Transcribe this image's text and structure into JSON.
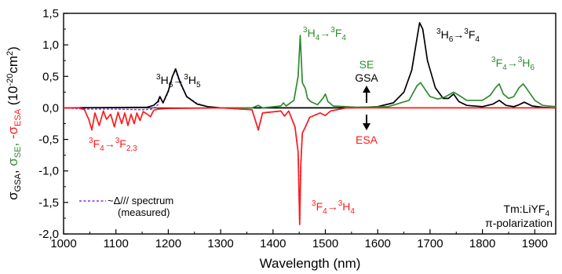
{
  "chart_data": {
    "type": "line",
    "title": "",
    "xlabel": "Wavelength (nm)",
    "ylabel": {
      "gsa": "σGSA, ",
      "se": "σSE",
      "sep": ", ",
      "esa": "-σESA",
      "units": " (10-20cm2)"
    },
    "xlim": [
      1000,
      1940
    ],
    "ylim": [
      -2.0,
      1.5
    ],
    "x_ticks": [
      1000,
      1100,
      1200,
      1300,
      1400,
      1500,
      1600,
      1700,
      1800,
      1900
    ],
    "y_ticks": [
      -2.0,
      -1.5,
      -1.0,
      -0.5,
      0.0,
      0.5,
      1.0,
      1.5
    ],
    "x_tick_labels": [
      "1000",
      "1100",
      "1200",
      "1300",
      "1400",
      "1500",
      "1600",
      "1700",
      "1800",
      "1900"
    ],
    "y_tick_labels": [
      "-2,0",
      "-1,5",
      "-1,0",
      "-0,5",
      "0,0",
      "0,5",
      "1,0",
      "1,5"
    ],
    "grid": false,
    "legend_position": "bottom-left",
    "colors": {
      "gsa": "#000000",
      "se": "#2e8b2e",
      "esa": "#ff1a1a",
      "spectrum": "#8a2be2"
    },
    "series": [
      {
        "name": "~Δ/// spectrum (measured)",
        "color": "#8a2be2",
        "dashed": true,
        "x": [
          1000,
          1050,
          1100,
          1150,
          1170,
          1180,
          1184,
          1190,
          1200,
          1208,
          1214,
          1222,
          1235,
          1255,
          1275,
          1300,
          1360,
          1372,
          1380,
          1415,
          1422,
          1430,
          1442,
          1448,
          1451,
          1453,
          1456,
          1462,
          1470,
          1490,
          1500,
          1510,
          1540
        ],
        "y": [
          0,
          -0.02,
          -0.02,
          -0.03,
          -0.02,
          0.05,
          0.17,
          0.08,
          0.25,
          0.5,
          0.6,
          0.4,
          0.18,
          0.07,
          0.02,
          0,
          -0.03,
          -0.35,
          -0.08,
          -0.05,
          -0.13,
          -0.05,
          -0.3,
          -0.7,
          -1.85,
          -0.9,
          -0.4,
          -0.3,
          -0.15,
          -0.08,
          -0.12,
          -0.05,
          0
        ]
      },
      {
        "name": "GSA",
        "color": "#000000",
        "dashed": false,
        "x": [
          1000,
          1160,
          1172,
          1180,
          1184,
          1190,
          1200,
          1208,
          1214,
          1222,
          1235,
          1255,
          1275,
          1300,
          1550,
          1600,
          1630,
          1650,
          1665,
          1675,
          1680,
          1686,
          1695,
          1710,
          1725,
          1735,
          1745,
          1755,
          1770,
          1800,
          1820,
          1832,
          1845,
          1860,
          1870,
          1880,
          1895,
          1915,
          1940
        ],
        "y": [
          0,
          0.01,
          0.04,
          0.1,
          0.18,
          0.08,
          0.27,
          0.5,
          0.62,
          0.42,
          0.18,
          0.06,
          0.02,
          0,
          0,
          0.02,
          0.08,
          0.25,
          0.6,
          1.1,
          1.35,
          1.25,
          0.75,
          0.32,
          0.15,
          0.15,
          0.22,
          0.1,
          0.04,
          0.02,
          0.06,
          0.12,
          0.04,
          0.02,
          0.05,
          0.09,
          0.03,
          0.01,
          0
        ]
      },
      {
        "name": "SE",
        "color": "#2e8b2e",
        "dashed": false,
        "x": [
          1300,
          1360,
          1372,
          1380,
          1415,
          1420,
          1425,
          1440,
          1448,
          1452,
          1456,
          1462,
          1466,
          1472,
          1485,
          1495,
          1500,
          1505,
          1515,
          1560,
          1620,
          1660,
          1675,
          1682,
          1690,
          1700,
          1715,
          1730,
          1745,
          1755,
          1770,
          1800,
          1815,
          1825,
          1832,
          1840,
          1850,
          1860,
          1870,
          1878,
          1885,
          1900,
          1915,
          1940
        ],
        "y": [
          0,
          0,
          0.04,
          0,
          0.03,
          0.08,
          0.03,
          0.12,
          0.5,
          1.15,
          0.4,
          0.3,
          0.15,
          0.1,
          0.05,
          0.15,
          0.22,
          0.1,
          0.03,
          0.01,
          0.02,
          0.12,
          0.35,
          0.4,
          0.3,
          0.18,
          0.14,
          0.18,
          0.25,
          0.2,
          0.12,
          0.12,
          0.2,
          0.32,
          0.38,
          0.22,
          0.15,
          0.18,
          0.32,
          0.38,
          0.3,
          0.12,
          0.04,
          0.02
        ]
      },
      {
        "name": "ESA",
        "color": "#ff1a1a",
        "dashed": false,
        "x": [
          1000,
          1030,
          1040,
          1048,
          1054,
          1060,
          1068,
          1076,
          1082,
          1090,
          1097,
          1104,
          1111,
          1117,
          1123,
          1129,
          1135,
          1140,
          1146,
          1152,
          1160,
          1166,
          1172,
          1180,
          1200,
          1300,
          1360,
          1372,
          1380,
          1415,
          1422,
          1430,
          1442,
          1448,
          1451,
          1453,
          1456,
          1462,
          1470,
          1490,
          1500,
          1510,
          1540,
          1940
        ],
        "y": [
          0,
          0,
          -0.03,
          -0.18,
          -0.35,
          -0.08,
          -0.28,
          -0.05,
          -0.18,
          -0.1,
          -0.3,
          -0.07,
          -0.25,
          -0.08,
          -0.28,
          -0.1,
          -0.25,
          -0.08,
          -0.2,
          -0.06,
          -0.1,
          -0.14,
          -0.04,
          -0.02,
          -0.01,
          0,
          -0.03,
          -0.35,
          -0.08,
          -0.05,
          -0.13,
          -0.05,
          -0.3,
          -0.7,
          -1.85,
          -0.9,
          -0.4,
          -0.3,
          -0.15,
          -0.08,
          -0.12,
          -0.05,
          0,
          0
        ]
      }
    ]
  },
  "annotations": {
    "h6_h5": "3H6→3H5",
    "h4_f4": "3H4→3F4",
    "h6_f4": "3H6→3F4",
    "f4_h6": "3F4→3H6",
    "f4_f23": "3F4→3F2,3",
    "f4_h4": "3F4→3H4",
    "se": "SE",
    "gsa": "GSA",
    "esa": "ESA",
    "crystal": "Tm:LiYF4",
    "polarization": "π-polarization"
  },
  "legend": {
    "label_line1": "~Δ/// spectrum",
    "label_line2": "(measured)"
  }
}
